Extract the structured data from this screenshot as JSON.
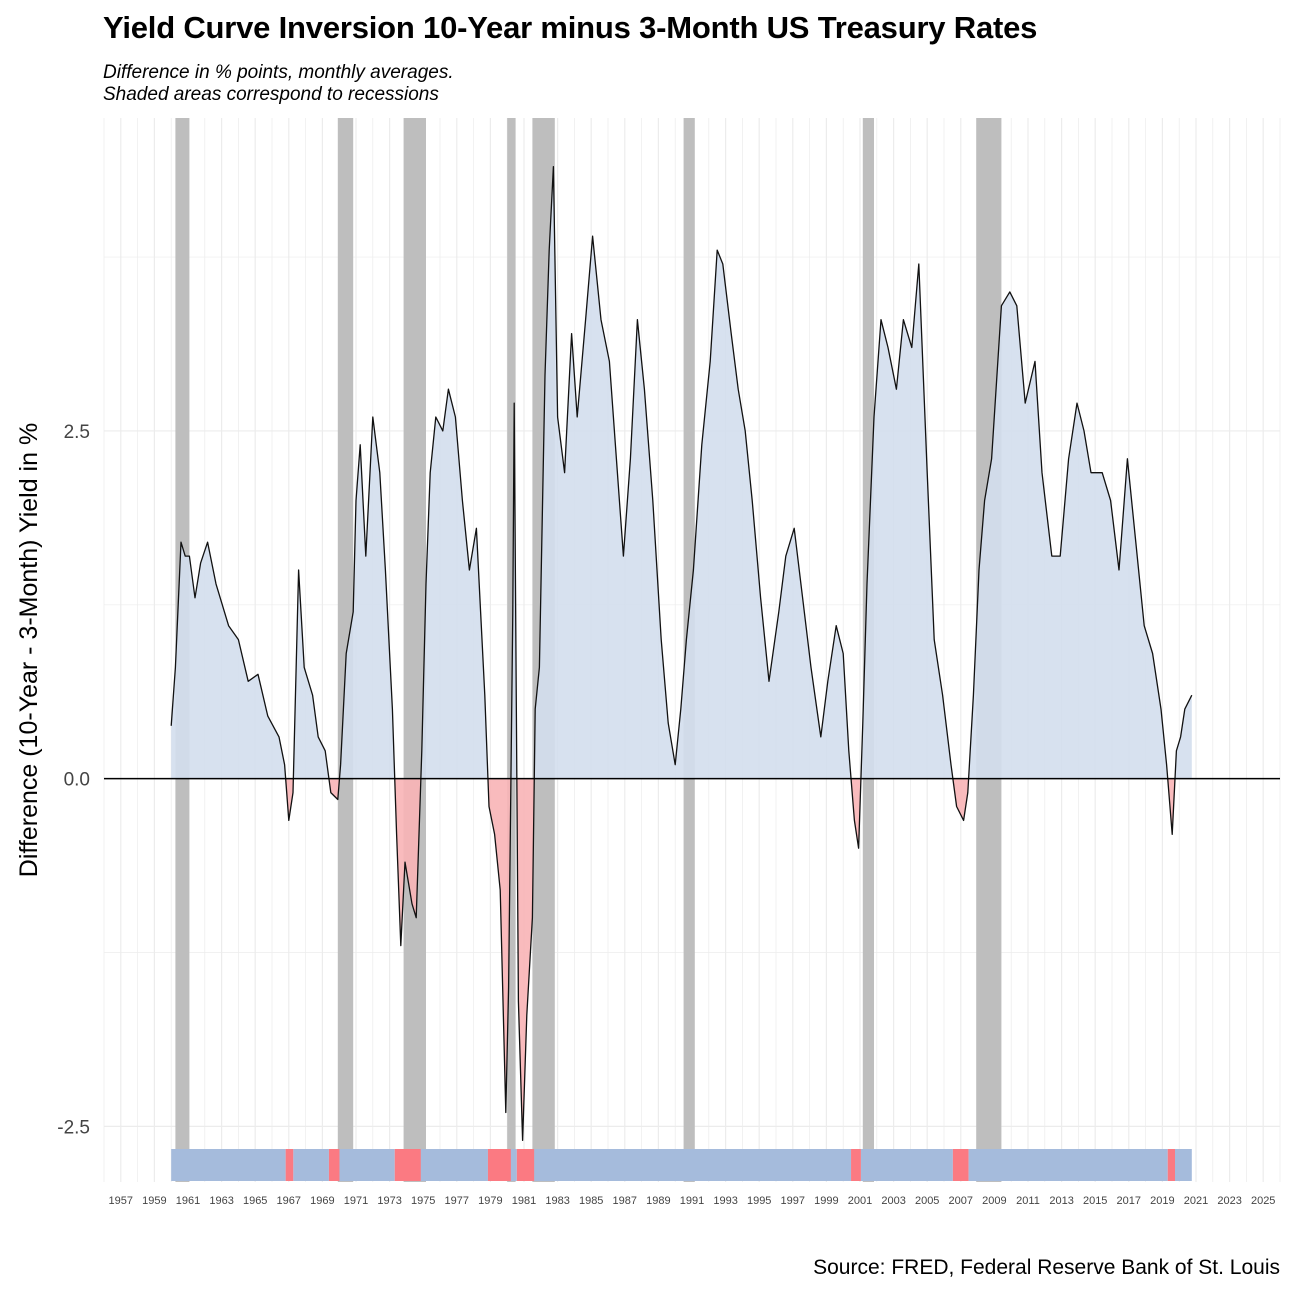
{
  "title": "Yield Curve Inversion 10-Year minus 3-Month US Treasury Rates",
  "subtitle_lines": [
    "Difference in % points, monthly averages.",
    "Shaded areas correspond to recessions"
  ],
  "caption": "Source: FRED, Federal Reserve Bank of St. Louis",
  "colors": {
    "positive_fill": "#d3deed",
    "negative_fill": "#f8b4b6",
    "positive_strip": "#a5bbdc",
    "negative_strip": "#fb7a82",
    "recession": "#bebebe",
    "line": "#111111",
    "grid": "#ececec"
  },
  "chart_data": {
    "type": "area",
    "title": "Yield Curve Inversion 10-Year minus 3-Month US Treasury Rates",
    "ylabel": "Difference (10-Year - 3-Month) Yield in %",
    "xlabel": "",
    "xlim": [
      "1956-01-01",
      "2026-01-01"
    ],
    "ylim": [
      -2.9,
      4.75
    ],
    "yticks": [
      -2.5,
      0.0,
      2.5
    ],
    "ytick_labels": [
      "-2.5",
      "0.0",
      "2.5"
    ],
    "xtick_labels": [
      "1957",
      "1959",
      "1961",
      "1963",
      "1965",
      "1967",
      "1969",
      "1971",
      "1973",
      "1975",
      "1977",
      "1979",
      "1981",
      "1983",
      "1985",
      "1987",
      "1989",
      "1991",
      "1993",
      "1995",
      "1997",
      "1999",
      "2001",
      "2003",
      "2005",
      "2007",
      "2009",
      "2011",
      "2013",
      "2015",
      "2017",
      "2019",
      "2021",
      "2023",
      "2025"
    ],
    "grid": true,
    "recessions": [
      [
        "1960-04-01",
        "1961-02-01"
      ],
      [
        "1969-12-01",
        "1970-11-01"
      ],
      [
        "1973-11-01",
        "1975-03-01"
      ],
      [
        "1980-01-01",
        "1980-07-01"
      ],
      [
        "1981-07-01",
        "1982-11-01"
      ],
      [
        "1990-07-01",
        "1991-03-01"
      ],
      [
        "2001-03-01",
        "2001-11-01"
      ],
      [
        "2007-12-01",
        "2009-06-01"
      ]
    ],
    "series": [
      {
        "values": [
          [
            "1960-01-01",
            0.38
          ],
          [
            "1960-04-01",
            0.8
          ],
          [
            "1960-08-01",
            1.7
          ],
          [
            "1960-11-01",
            1.6
          ],
          [
            "1961-02-01",
            1.6
          ],
          [
            "1961-06-01",
            1.3
          ],
          [
            "1961-10-01",
            1.55
          ],
          [
            "1962-03-01",
            1.7
          ],
          [
            "1962-09-01",
            1.4
          ],
          [
            "1963-06-01",
            1.1
          ],
          [
            "1964-01-01",
            1.0
          ],
          [
            "1964-08-01",
            0.7
          ],
          [
            "1965-03-01",
            0.75
          ],
          [
            "1965-10-01",
            0.45
          ],
          [
            "1966-06-01",
            0.3
          ],
          [
            "1966-10-01",
            0.1
          ],
          [
            "1967-01-01",
            -0.3
          ],
          [
            "1967-04-01",
            -0.1
          ],
          [
            "1967-08-01",
            1.5
          ],
          [
            "1967-12-01",
            0.8
          ],
          [
            "1968-06-01",
            0.6
          ],
          [
            "1968-10-01",
            0.3
          ],
          [
            "1969-03-01",
            0.2
          ],
          [
            "1969-07-01",
            -0.1
          ],
          [
            "1969-12-01",
            -0.15
          ],
          [
            "1970-02-01",
            0.1
          ],
          [
            "1970-06-01",
            0.9
          ],
          [
            "1970-11-01",
            1.2
          ],
          [
            "1971-01-01",
            2.0
          ],
          [
            "1971-04-01",
            2.4
          ],
          [
            "1971-08-01",
            1.6
          ],
          [
            "1972-01-01",
            2.6
          ],
          [
            "1972-06-01",
            2.2
          ],
          [
            "1972-10-01",
            1.5
          ],
          [
            "1973-03-01",
            0.5
          ],
          [
            "1973-06-01",
            -0.4
          ],
          [
            "1973-09-01",
            -1.2
          ],
          [
            "1973-12-01",
            -0.6
          ],
          [
            "1974-05-01",
            -0.9
          ],
          [
            "1974-08-01",
            -1.0
          ],
          [
            "1974-12-01",
            0.2
          ],
          [
            "1975-03-01",
            1.4
          ],
          [
            "1975-06-01",
            2.2
          ],
          [
            "1975-10-01",
            2.6
          ],
          [
            "1976-03-01",
            2.5
          ],
          [
            "1976-07-01",
            2.8
          ],
          [
            "1976-12-01",
            2.6
          ],
          [
            "1977-05-01",
            2.0
          ],
          [
            "1977-10-01",
            1.5
          ],
          [
            "1978-03-01",
            1.8
          ],
          [
            "1978-06-01",
            1.2
          ],
          [
            "1978-09-01",
            0.6
          ],
          [
            "1978-12-01",
            -0.2
          ],
          [
            "1979-04-01",
            -0.4
          ],
          [
            "1979-08-01",
            -0.8
          ],
          [
            "1979-12-01",
            -2.4
          ],
          [
            "1980-02-01",
            -1.5
          ],
          [
            "1980-05-01",
            1.2
          ],
          [
            "1980-06-01",
            2.7
          ],
          [
            "1980-09-01",
            -1.6
          ],
          [
            "1980-12-01",
            -2.6
          ],
          [
            "1981-03-01",
            -1.7
          ],
          [
            "1981-07-01",
            -1.0
          ],
          [
            "1981-09-01",
            0.5
          ],
          [
            "1981-12-01",
            0.8
          ],
          [
            "1982-04-01",
            2.9
          ],
          [
            "1982-07-01",
            3.8
          ],
          [
            "1982-10-01",
            4.4
          ],
          [
            "1983-01-01",
            2.6
          ],
          [
            "1983-06-01",
            2.2
          ],
          [
            "1983-11-01",
            3.2
          ],
          [
            "1984-03-01",
            2.6
          ],
          [
            "1984-09-01",
            3.3
          ],
          [
            "1985-02-01",
            3.9
          ],
          [
            "1985-08-01",
            3.3
          ],
          [
            "1986-02-01",
            3.0
          ],
          [
            "1986-07-01",
            2.3
          ],
          [
            "1986-12-01",
            1.6
          ],
          [
            "1987-05-01",
            2.3
          ],
          [
            "1987-10-01",
            3.3
          ],
          [
            "1988-03-01",
            2.8
          ],
          [
            "1988-09-01",
            2.0
          ],
          [
            "1989-03-01",
            1.0
          ],
          [
            "1989-08-01",
            0.4
          ],
          [
            "1990-01-01",
            0.1
          ],
          [
            "1990-05-01",
            0.5
          ],
          [
            "1990-09-01",
            1.0
          ],
          [
            "1991-02-01",
            1.5
          ],
          [
            "1991-08-01",
            2.4
          ],
          [
            "1992-02-01",
            3.0
          ],
          [
            "1992-07-01",
            3.8
          ],
          [
            "1992-11-01",
            3.7
          ],
          [
            "1993-05-01",
            3.2
          ],
          [
            "1993-10-01",
            2.8
          ],
          [
            "1994-03-01",
            2.5
          ],
          [
            "1994-08-01",
            2.0
          ],
          [
            "1995-02-01",
            1.3
          ],
          [
            "1995-08-01",
            0.7
          ],
          [
            "1996-03-01",
            1.2
          ],
          [
            "1996-08-01",
            1.6
          ],
          [
            "1997-02-01",
            1.8
          ],
          [
            "1997-08-01",
            1.3
          ],
          [
            "1998-02-01",
            0.8
          ],
          [
            "1998-09-01",
            0.3
          ],
          [
            "1999-02-01",
            0.7
          ],
          [
            "1999-08-01",
            1.1
          ],
          [
            "2000-01-01",
            0.9
          ],
          [
            "2000-05-01",
            0.2
          ],
          [
            "2000-09-01",
            -0.3
          ],
          [
            "2000-12-01",
            -0.5
          ],
          [
            "2001-03-01",
            0.4
          ],
          [
            "2001-06-01",
            1.4
          ],
          [
            "2001-11-01",
            2.6
          ],
          [
            "2002-04-01",
            3.3
          ],
          [
            "2002-09-01",
            3.1
          ],
          [
            "2003-03-01",
            2.8
          ],
          [
            "2003-08-01",
            3.3
          ],
          [
            "2004-02-01",
            3.1
          ],
          [
            "2004-07-01",
            3.7
          ],
          [
            "2005-01-01",
            2.2
          ],
          [
            "2005-06-01",
            1.0
          ],
          [
            "2005-12-01",
            0.6
          ],
          [
            "2006-06-01",
            0.1
          ],
          [
            "2006-10-01",
            -0.2
          ],
          [
            "2007-03-01",
            -0.3
          ],
          [
            "2007-06-01",
            -0.1
          ],
          [
            "2007-10-01",
            0.6
          ],
          [
            "2008-02-01",
            1.5
          ],
          [
            "2008-06-01",
            2.0
          ],
          [
            "2008-11-01",
            2.3
          ],
          [
            "2009-06-01",
            3.4
          ],
          [
            "2009-12-01",
            3.5
          ],
          [
            "2010-05-01",
            3.4
          ],
          [
            "2010-11-01",
            2.7
          ],
          [
            "2011-06-01",
            3.0
          ],
          [
            "2011-11-01",
            2.2
          ],
          [
            "2012-06-01",
            1.6
          ],
          [
            "2012-12-01",
            1.6
          ],
          [
            "2013-06-01",
            2.3
          ],
          [
            "2013-12-01",
            2.7
          ],
          [
            "2014-05-01",
            2.5
          ],
          [
            "2014-10-01",
            2.2
          ],
          [
            "2015-06-01",
            2.2
          ],
          [
            "2015-12-01",
            2.0
          ],
          [
            "2016-06-01",
            1.5
          ],
          [
            "2016-12-01",
            2.3
          ],
          [
            "2017-06-01",
            1.7
          ],
          [
            "2017-12-01",
            1.1
          ],
          [
            "2018-06-01",
            0.9
          ],
          [
            "2018-12-01",
            0.5
          ],
          [
            "2019-04-01",
            0.1
          ],
          [
            "2019-08-01",
            -0.4
          ],
          [
            "2019-11-01",
            0.2
          ],
          [
            "2020-02-01",
            0.3
          ],
          [
            "2020-05-01",
            0.5
          ],
          [
            "2020-10-01",
            0.6
          ]
        ]
      }
    ]
  }
}
